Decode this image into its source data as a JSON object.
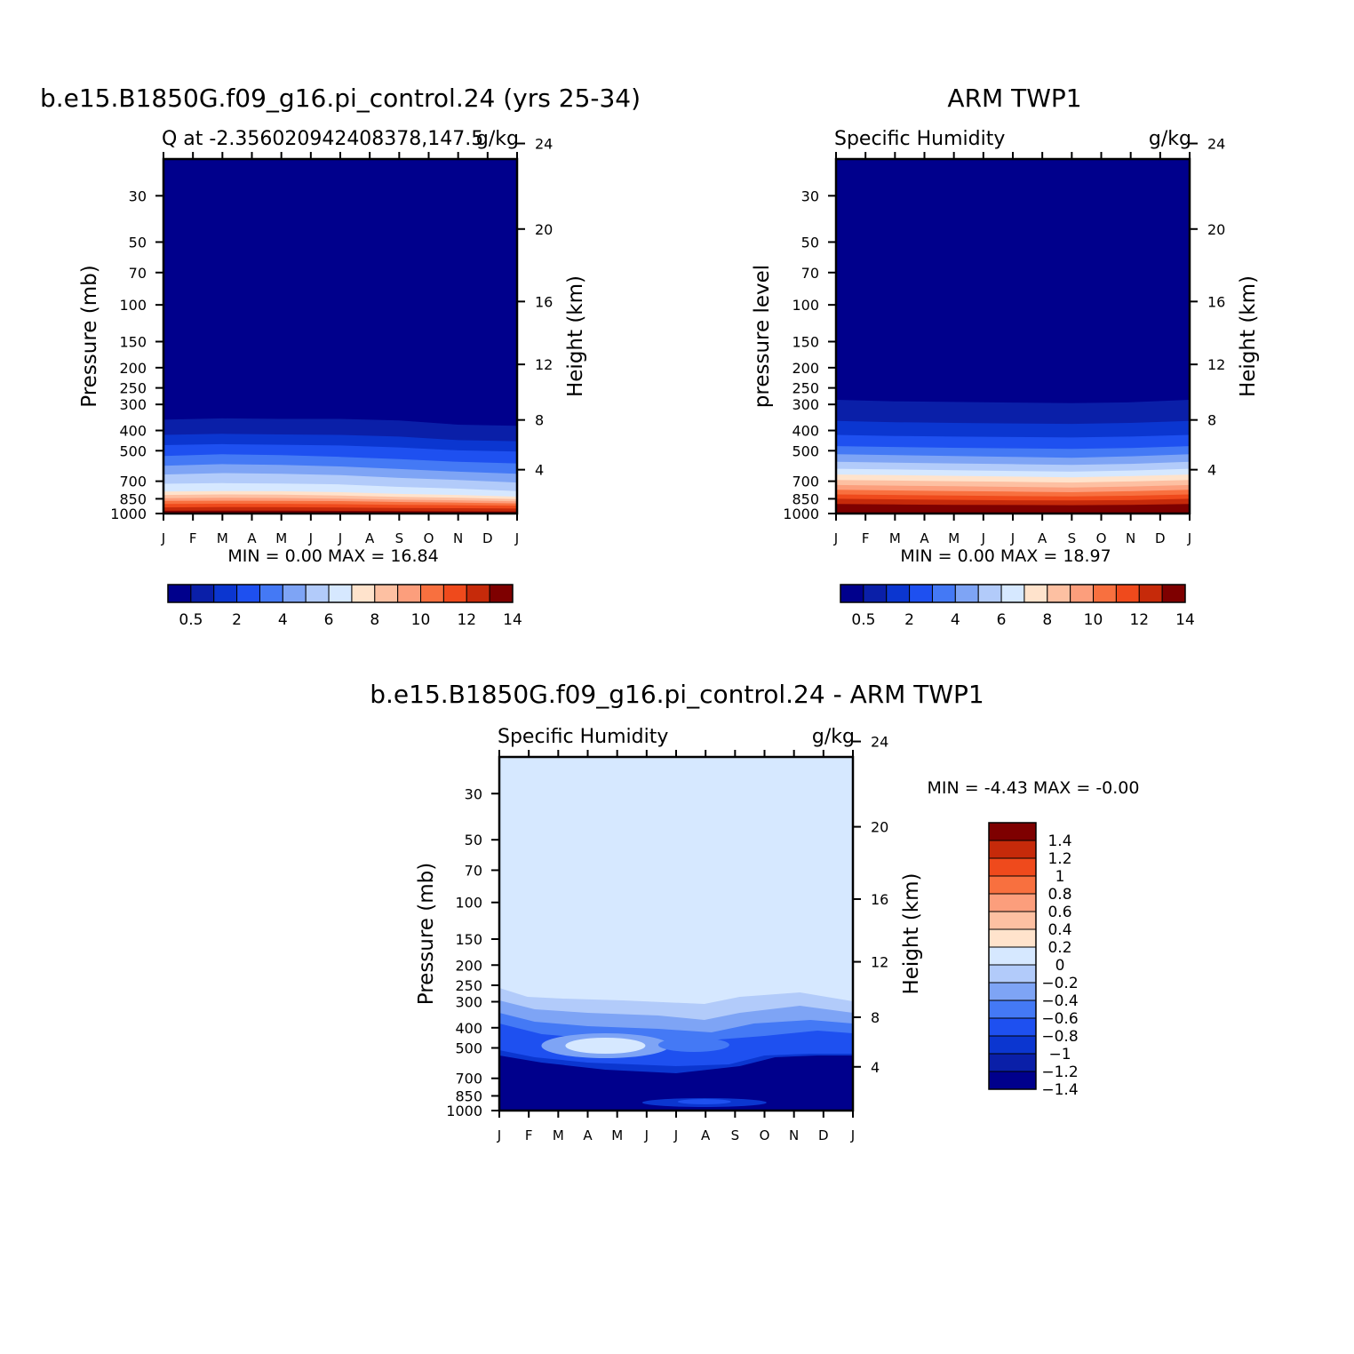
{
  "chart_data": [
    {
      "type": "heatmap",
      "title": "b.e15.B1850G.f09_g16.pi_control.24 (yrs 25-34)",
      "subtitle_left": "Q at -2.356020942408378,147.5",
      "subtitle_right": "g/kg",
      "ylabel": "Pressure (mb)",
      "y2label": "Height (km)",
      "x": [
        "J",
        "F",
        "M",
        "A",
        "M",
        "J",
        "J",
        "A",
        "S",
        "O",
        "N",
        "D",
        "J"
      ],
      "y_ticks": [
        "30",
        "50",
        "70",
        "100",
        "150",
        "200",
        "250",
        "300",
        "400",
        "500",
        "700",
        "850",
        "1000"
      ],
      "y2_ticks": [
        "24",
        "20",
        "16",
        "12",
        "8",
        "4"
      ],
      "stats": "MIN =    0.00  MAX =   16.84",
      "colorbar_labels": [
        "0.5",
        "2",
        "4",
        "6",
        "8",
        "10",
        "12",
        "14"
      ],
      "colorbar_levels": [
        0.5,
        1,
        2,
        3,
        4,
        5,
        6,
        7,
        8,
        9,
        10,
        11,
        12,
        13,
        14
      ],
      "contour_pressure_mb": {
        "levels": [
          1,
          2,
          3,
          4,
          5,
          6,
          7,
          8,
          9,
          10,
          11,
          12,
          13,
          14
        ],
        "profiles": [
          [
            355,
            420,
            470,
            530,
            590,
            650,
            720,
            785,
            815,
            845,
            870,
            900,
            935,
            970
          ],
          [
            350,
            415,
            465,
            520,
            580,
            640,
            715,
            780,
            810,
            840,
            868,
            898,
            932,
            968
          ],
          [
            352,
            418,
            468,
            525,
            585,
            645,
            718,
            782,
            812,
            842,
            869,
            899,
            933,
            969
          ],
          [
            352,
            420,
            472,
            535,
            595,
            655,
            725,
            790,
            820,
            848,
            872,
            902,
            936,
            971
          ],
          [
            358,
            428,
            482,
            548,
            612,
            675,
            745,
            805,
            832,
            858,
            880,
            908,
            940,
            974
          ],
          [
            375,
            445,
            498,
            565,
            630,
            690,
            760,
            815,
            840,
            864,
            886,
            912,
            943,
            976
          ],
          [
            380,
            450,
            505,
            575,
            645,
            710,
            780,
            830,
            852,
            874,
            894,
            918,
            947,
            978
          ]
        ]
      }
    },
    {
      "type": "heatmap",
      "title": "ARM TWP1",
      "subtitle_left": "Specific Humidity",
      "subtitle_right": "g/kg",
      "ylabel": "pressure level",
      "y2label": "Height (km)",
      "x": [
        "J",
        "F",
        "M",
        "A",
        "M",
        "J",
        "J",
        "A",
        "S",
        "O",
        "N",
        "D",
        "J"
      ],
      "y_ticks": [
        "30",
        "50",
        "70",
        "100",
        "150",
        "200",
        "250",
        "300",
        "400",
        "500",
        "700",
        "850",
        "1000"
      ],
      "y2_ticks": [
        "24",
        "20",
        "16",
        "12",
        "8",
        "4"
      ],
      "stats": "MIN =    0.00  MAX =   18.97",
      "colorbar_labels": [
        "0.5",
        "2",
        "4",
        "6",
        "8",
        "10",
        "12",
        "14"
      ],
      "colorbar_levels": [
        0.5,
        1,
        2,
        3,
        4,
        5,
        6,
        7,
        8,
        9,
        10,
        11,
        12,
        13,
        14
      ],
      "contour_pressure_mb": {
        "levels": [
          1,
          2,
          3,
          4,
          5,
          6,
          7,
          8,
          9,
          10,
          11,
          12,
          13,
          14
        ],
        "profiles": [
          [
            285,
            360,
            420,
            475,
            520,
            565,
            610,
            650,
            690,
            730,
            770,
            810,
            850,
            900
          ],
          [
            290,
            365,
            425,
            480,
            525,
            570,
            615,
            655,
            695,
            735,
            775,
            815,
            855,
            905
          ],
          [
            292,
            368,
            428,
            484,
            530,
            575,
            620,
            660,
            700,
            740,
            780,
            820,
            860,
            908
          ],
          [
            294,
            370,
            430,
            487,
            535,
            580,
            625,
            665,
            705,
            745,
            785,
            825,
            864,
            910
          ],
          [
            296,
            372,
            432,
            490,
            540,
            585,
            630,
            670,
            710,
            750,
            790,
            828,
            866,
            912
          ],
          [
            293,
            368,
            428,
            485,
            532,
            578,
            622,
            662,
            702,
            742,
            782,
            822,
            862,
            908
          ],
          [
            285,
            360,
            420,
            475,
            520,
            565,
            610,
            650,
            690,
            730,
            770,
            810,
            850,
            900
          ]
        ]
      }
    },
    {
      "type": "heatmap",
      "title": "b.e15.B1850G.f09_g16.pi_control.24 - ARM TWP1",
      "subtitle_left": "Specific Humidity",
      "subtitle_right": "g/kg",
      "ylabel": "Pressure (mb)",
      "y2label": "Height (km)",
      "x": [
        "J",
        "F",
        "M",
        "A",
        "M",
        "J",
        "J",
        "A",
        "S",
        "O",
        "N",
        "D",
        "J"
      ],
      "y_ticks": [
        "30",
        "50",
        "70",
        "100",
        "150",
        "200",
        "250",
        "300",
        "400",
        "500",
        "700",
        "850",
        "1000"
      ],
      "y2_ticks": [
        "24",
        "20",
        "16",
        "12",
        "8",
        "4"
      ],
      "stats": "MIN =   -4.43  MAX =   -0.00",
      "colorbar_labels": [
        "1.4",
        "1.2",
        "1",
        "0.8",
        "0.6",
        "0.4",
        "0.2",
        "0",
        "-0.2",
        "-0.4",
        "-0.6",
        "-0.8",
        "-1",
        "-1.2",
        "-1.4"
      ],
      "colorbar_levels": [
        -1.4,
        -1.2,
        -1,
        -0.8,
        -0.6,
        -0.4,
        -0.2,
        0,
        0.2,
        0.4,
        0.6,
        0.8,
        1,
        1.2,
        1.4
      ]
    }
  ],
  "colors": {
    "blues_to_reds": [
      "#00008c",
      "#0a1fa8",
      "#0b36d0",
      "#1e50f0",
      "#4479f5",
      "#7ea4f5",
      "#b2cbfa",
      "#d6e8ff",
      "#ffe3cc",
      "#fdc0a2",
      "#fc9e7c",
      "#f8703f",
      "#ef4a1c",
      "#c62a0a",
      "#7e0000"
    ],
    "difference_scale": [
      "#00008c",
      "#0a1fa8",
      "#0b36d0",
      "#1e50f0",
      "#4479f5",
      "#7ea4f5",
      "#b2cbfa",
      "#d6e8ff",
      "#ffe3cc",
      "#fdc0a2",
      "#fc9e7c",
      "#f8703f",
      "#ef4a1c",
      "#c62a0a",
      "#7e0000"
    ]
  }
}
